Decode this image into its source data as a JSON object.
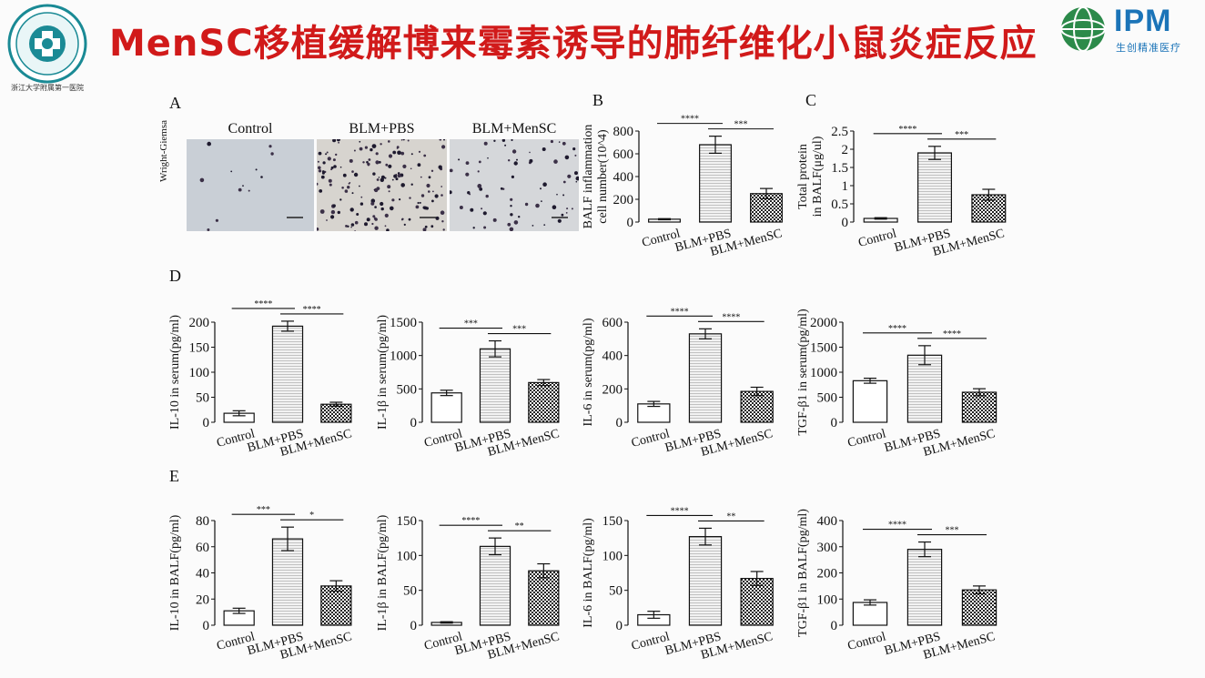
{
  "slide": {
    "title": "MenSC移植缓解博来霉素诱导的肺纤维化小鼠炎症反应",
    "logo_left_caption": "浙江大学附属第一医院",
    "logo_right_text": "IPM",
    "logo_right_sub": "生创精准医疗"
  },
  "panels": {
    "A": "A",
    "B": "B",
    "C": "C",
    "D": "D",
    "E": "E"
  },
  "micrographs": {
    "stain": "Wright-Giemsa",
    "labels": [
      "Control",
      "BLM+PBS",
      "BLM+MenSC"
    ]
  },
  "colors": {
    "title": "#d11a1a",
    "ipm": "#1b74b8"
  },
  "chart_data": [
    {
      "id": "B",
      "type": "bar",
      "panel": "B",
      "categories": [
        "Control",
        "BLM+PBS",
        "BLM+MenSC"
      ],
      "values": [
        25,
        680,
        250
      ],
      "errors": [
        5,
        75,
        45
      ],
      "ylabel": [
        "BALF inflammation",
        "cell number(10^4)"
      ],
      "ylim": [
        0,
        800
      ],
      "ticks": [
        0,
        200,
        400,
        600,
        800
      ],
      "sig": [
        {
          "from": 0,
          "to": 1,
          "label": "****"
        },
        {
          "from": 1,
          "to": 2,
          "label": "***"
        }
      ]
    },
    {
      "id": "C",
      "type": "bar",
      "panel": "C",
      "categories": [
        "Control",
        "BLM+PBS",
        "BLM+MenSC"
      ],
      "values": [
        0.1,
        1.9,
        0.75
      ],
      "errors": [
        0.02,
        0.18,
        0.15
      ],
      "ylabel": [
        "Total protein",
        "in BALF(μg/ul)"
      ],
      "ylim": [
        0,
        2.5
      ],
      "ticks": [
        0,
        0.5,
        1.0,
        1.5,
        2.0,
        2.5
      ],
      "sig": [
        {
          "from": 0,
          "to": 1,
          "label": "****"
        },
        {
          "from": 1,
          "to": 2,
          "label": "***"
        }
      ]
    },
    {
      "id": "D1",
      "type": "bar",
      "panel": "D",
      "categories": [
        "Control",
        "BLM+PBS",
        "BLM+MenSC"
      ],
      "values": [
        18,
        192,
        36
      ],
      "errors": [
        5,
        10,
        4
      ],
      "ylabel": [
        "IL-10 in serum(pg/ml)"
      ],
      "ylim": [
        0,
        200
      ],
      "ticks": [
        0,
        50,
        100,
        150,
        200
      ],
      "sig": [
        {
          "from": 0,
          "to": 1,
          "label": "****"
        },
        {
          "from": 1,
          "to": 2,
          "label": "****"
        }
      ]
    },
    {
      "id": "D2",
      "type": "bar",
      "panel": "D",
      "categories": [
        "Control",
        "BLM+PBS",
        "BLM+MenSC"
      ],
      "values": [
        440,
        1100,
        595
      ],
      "errors": [
        40,
        120,
        45
      ],
      "ylabel": [
        "IL-1β in serum(pg/ml)"
      ],
      "ylim": [
        0,
        1500
      ],
      "ticks": [
        0,
        500,
        1000,
        1500
      ],
      "sig": [
        {
          "from": 0,
          "to": 1,
          "label": "***"
        },
        {
          "from": 1,
          "to": 2,
          "label": "***"
        }
      ]
    },
    {
      "id": "D3",
      "type": "bar",
      "panel": "D",
      "categories": [
        "Control",
        "BLM+PBS",
        "BLM+MenSC"
      ],
      "values": [
        110,
        530,
        185
      ],
      "errors": [
        15,
        30,
        25
      ],
      "ylabel": [
        "IL-6 in serum(pg/ml)"
      ],
      "ylim": [
        0,
        600
      ],
      "ticks": [
        0,
        200,
        400,
        600
      ],
      "sig": [
        {
          "from": 0,
          "to": 1,
          "label": "****"
        },
        {
          "from": 1,
          "to": 2,
          "label": "****"
        }
      ]
    },
    {
      "id": "D4",
      "type": "bar",
      "panel": "D",
      "categories": [
        "Control",
        "BLM+PBS",
        "BLM+MenSC"
      ],
      "values": [
        830,
        1340,
        600
      ],
      "errors": [
        50,
        190,
        70
      ],
      "ylabel": [
        "TGF-β1 in serum(pg/ml)"
      ],
      "ylim": [
        0,
        2000
      ],
      "ticks": [
        0,
        500,
        1000,
        1500,
        2000
      ],
      "sig": [
        {
          "from": 0,
          "to": 1,
          "label": "****"
        },
        {
          "from": 1,
          "to": 2,
          "label": "****"
        }
      ]
    },
    {
      "id": "E1",
      "type": "bar",
      "panel": "E",
      "categories": [
        "Control",
        "BLM+PBS",
        "BLM+MenSC"
      ],
      "values": [
        11,
        66,
        30
      ],
      "errors": [
        2,
        9,
        4
      ],
      "ylabel": [
        "IL-10 in BALF(pg/ml)"
      ],
      "ylim": [
        0,
        80
      ],
      "ticks": [
        0,
        20,
        40,
        60,
        80
      ],
      "sig": [
        {
          "from": 0,
          "to": 1,
          "label": "***"
        },
        {
          "from": 1,
          "to": 2,
          "label": "*"
        }
      ]
    },
    {
      "id": "E2",
      "type": "bar",
      "panel": "E",
      "categories": [
        "Control",
        "BLM+PBS",
        "BLM+MenSC"
      ],
      "values": [
        4,
        113,
        78
      ],
      "errors": [
        1,
        12,
        10
      ],
      "ylabel": [
        "IL-1β in BALF(pg/ml)"
      ],
      "ylim": [
        0,
        150
      ],
      "ticks": [
        0,
        50,
        100,
        150
      ],
      "sig": [
        {
          "from": 0,
          "to": 1,
          "label": "****"
        },
        {
          "from": 1,
          "to": 2,
          "label": "**"
        }
      ]
    },
    {
      "id": "E3",
      "type": "bar",
      "panel": "E",
      "categories": [
        "Control",
        "BLM+PBS",
        "BLM+MenSC"
      ],
      "values": [
        15,
        127,
        67
      ],
      "errors": [
        5,
        12,
        10
      ],
      "ylabel": [
        "IL-6 in BALF(pg/ml)"
      ],
      "ylim": [
        0,
        150
      ],
      "ticks": [
        0,
        50,
        100,
        150
      ],
      "sig": [
        {
          "from": 0,
          "to": 1,
          "label": "****"
        },
        {
          "from": 1,
          "to": 2,
          "label": "**"
        }
      ]
    },
    {
      "id": "E4",
      "type": "bar",
      "panel": "E",
      "categories": [
        "Control",
        "BLM+PBS",
        "BLM+MenSC"
      ],
      "values": [
        87,
        290,
        135
      ],
      "errors": [
        10,
        28,
        15
      ],
      "ylabel": [
        "TGF-β1 in BALF(pg/ml)"
      ],
      "ylim": [
        0,
        400
      ],
      "ticks": [
        0,
        100,
        200,
        300,
        400
      ],
      "sig": [
        {
          "from": 0,
          "to": 1,
          "label": "****"
        },
        {
          "from": 1,
          "to": 2,
          "label": "***"
        }
      ]
    }
  ]
}
